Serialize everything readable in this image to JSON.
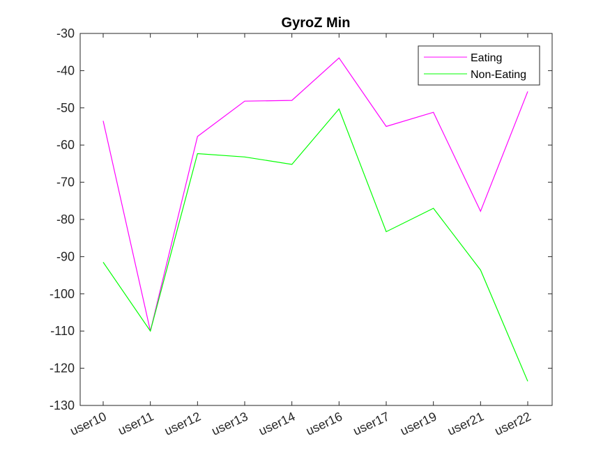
{
  "chart_data": {
    "type": "line",
    "title": "GyroZ Min",
    "xlabel": "",
    "ylabel": "",
    "categories": [
      "user10",
      "user11",
      "user12",
      "user13",
      "user14",
      "user16",
      "user17",
      "user19",
      "user21",
      "user22"
    ],
    "ylim": [
      -130,
      -30
    ],
    "yticks": [
      -30,
      -40,
      -50,
      -60,
      -70,
      -80,
      -90,
      -100,
      -110,
      -120,
      -130
    ],
    "grid": false,
    "legend_position": "top-right",
    "series": [
      {
        "name": "Eating",
        "color": "#ff00ff",
        "values": [
          -53.5,
          -110,
          -57.7,
          -48.2,
          -48.0,
          -36.6,
          -55.0,
          -51.2,
          -77.8,
          -45.6
        ]
      },
      {
        "name": "Non-Eating",
        "color": "#00ff00",
        "values": [
          -91.5,
          -110,
          -62.3,
          -63.2,
          -65.2,
          -50.3,
          -83.3,
          -77.0,
          -93.6,
          -123.5
        ]
      }
    ]
  }
}
